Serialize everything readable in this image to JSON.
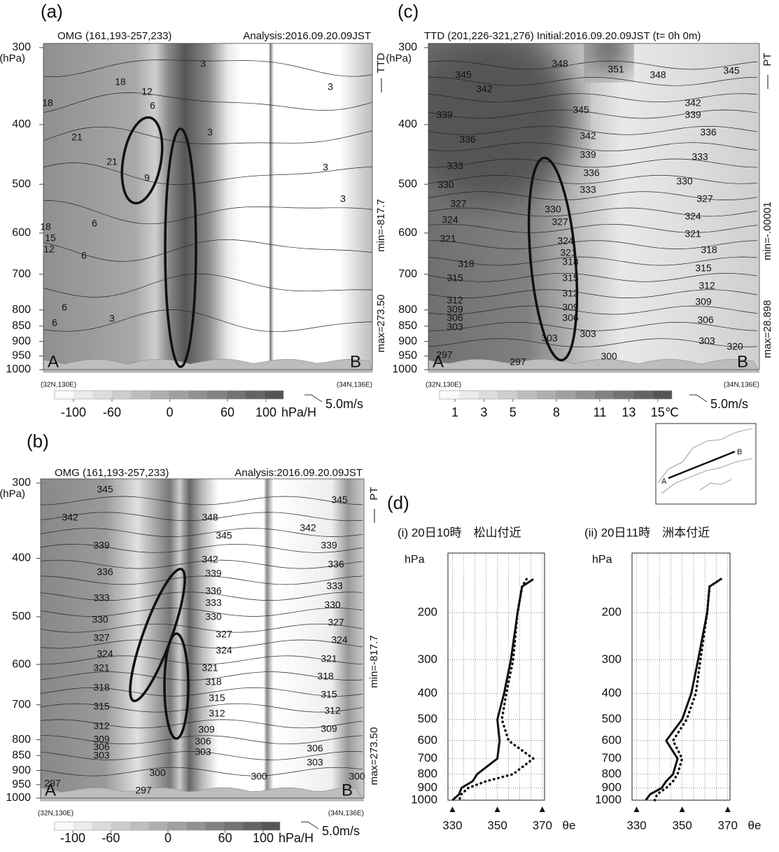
{
  "panels": {
    "a": {
      "label": "(a)",
      "title_left": "OMG (161,193-257,233)",
      "title_right": "Analysis:2016.09.20.09JST",
      "y_unit": "(hPa)",
      "yticks": [
        300,
        400,
        500,
        600,
        700,
        800,
        850,
        900,
        950,
        1000
      ],
      "yscale": "log",
      "side_labels": [
        "TTD",
        "min=-817.7",
        "max=273.50"
      ],
      "corner_left": "(32N,130E)",
      "corner_right": "(34N,136E)",
      "point_a": "A",
      "point_b": "B",
      "colorbar_ticks": [
        -100,
        -60,
        0,
        60,
        100
      ],
      "colorbar_unit": "hPa/H",
      "wind_scale": "5.0m/s",
      "contour_labels": [
        3,
        18,
        12,
        6,
        18,
        21,
        21,
        9,
        6,
        18,
        15,
        12,
        6,
        6,
        6,
        3,
        3,
        3,
        3,
        3
      ]
    },
    "b": {
      "label": "(b)",
      "title_left": "OMG (161,193-257,233)",
      "title_right": "Analysis:2016.09.20.09JST",
      "y_unit": "(hPa)",
      "yticks": [
        300,
        400,
        500,
        600,
        700,
        800,
        850,
        900,
        950,
        1000
      ],
      "yscale": "log",
      "side_labels": [
        "PT",
        "min=-817.7",
        "max=273.50"
      ],
      "corner_left": "(32N,130E)",
      "corner_right": "(34N,136E)",
      "point_a": "A",
      "point_b": "B",
      "colorbar_ticks": [
        -100,
        -60,
        0,
        60,
        100
      ],
      "colorbar_unit": "hPa/H",
      "wind_scale": "5.0m/s",
      "contour_labels": [
        345,
        345,
        348,
        342,
        345,
        342,
        339,
        342,
        339,
        339,
        336,
        336,
        333,
        336,
        333,
        333,
        330,
        330,
        330,
        327,
        327,
        327,
        324,
        324,
        324,
        321,
        321,
        321,
        318,
        318,
        318,
        315,
        315,
        315,
        312,
        312,
        312,
        309,
        309,
        306,
        303,
        309,
        306,
        303,
        306,
        303,
        300,
        300,
        297,
        297,
        300
      ]
    },
    "c": {
      "label": "(c)",
      "title_left": "TTD (201,226-321,276) Initial:2016.09.20.09JST (t=  0h 0m)",
      "y_unit": "(hPa)",
      "yticks": [
        300,
        400,
        500,
        600,
        700,
        800,
        850,
        900,
        950,
        1000
      ],
      "yscale": "log",
      "side_labels": [
        "PT",
        "min=-.00001",
        "max=28.898"
      ],
      "corner_left": "(32N,130E)",
      "corner_right": "(34N,136E)",
      "point_a": "A",
      "point_b": "B",
      "colorbar_ticks": [
        1,
        3,
        5,
        8,
        11,
        13,
        15
      ],
      "colorbar_unit": "℃",
      "wind_scale": "5.0m/s",
      "contour_labels": [
        345,
        348,
        351,
        348,
        345,
        342,
        342,
        345,
        339,
        339,
        342,
        336,
        336,
        339,
        333,
        333,
        336,
        330,
        330,
        333,
        327,
        327,
        324,
        324,
        321,
        321,
        318,
        318,
        315,
        315,
        312,
        312,
        309,
        309,
        306,
        306,
        303,
        303,
        300,
        297,
        297,
        320,
        318,
        315,
        312,
        309,
        306,
        303,
        303,
        330,
        327,
        324,
        321
      ]
    }
  },
  "inset_map": {
    "point_a": "A",
    "point_b": "B"
  },
  "panel_d_label": "(d)",
  "chart_data": [
    {
      "type": "line",
      "title": "(i) 20日10時　松山付近",
      "y_label": "hPa",
      "x_label": "θe",
      "xlim": [
        328,
        371
      ],
      "xticks": [
        330,
        350,
        370
      ],
      "xgrid": [
        330,
        335,
        340,
        345,
        350,
        355,
        360,
        365,
        370
      ],
      "ylim": [
        1000,
        120
      ],
      "yticks": [
        200,
        300,
        400,
        500,
        600,
        700,
        800,
        900,
        1000
      ],
      "y_log": true,
      "grid": true,
      "levels": [
        150,
        160,
        200,
        300,
        400,
        500,
        600,
        700,
        800,
        850,
        900,
        950,
        1000
      ],
      "series": [
        {
          "color": "#111111",
          "style": "solid",
          "values": [
            366,
            361,
            359,
            356,
            353,
            350,
            351,
            350,
            341,
            339,
            334,
            333,
            330
          ]
        },
        {
          "color": "#111111",
          "style": "dotted",
          "values": [
            363,
            361,
            359,
            357,
            354,
            352,
            355,
            366,
            357,
            345,
            337,
            334,
            333
          ]
        }
      ]
    },
    {
      "type": "line",
      "title": "(ii) 20日11時　洲本付近",
      "y_label": "hPa",
      "x_label": "θe",
      "xlim": [
        328,
        371
      ],
      "xticks": [
        330,
        350,
        370
      ],
      "xgrid": [
        330,
        335,
        340,
        345,
        350,
        355,
        360,
        365,
        370
      ],
      "ylim": [
        1000,
        120
      ],
      "yticks": [
        200,
        300,
        400,
        500,
        600,
        700,
        800,
        900,
        1000
      ],
      "y_log": true,
      "grid": true,
      "levels": [
        150,
        160,
        200,
        300,
        400,
        500,
        600,
        700,
        800,
        850,
        900,
        950,
        1000
      ],
      "series": [
        {
          "color": "#111111",
          "style": "solid",
          "values": [
            367,
            362,
            361,
            357,
            354,
            350,
            343,
            348,
            346,
            343,
            341,
            336,
            334
          ]
        },
        {
          "color": "#111111",
          "style": "dotted",
          "values": [
            367,
            362,
            361,
            358,
            356,
            352,
            346,
            350,
            348,
            346,
            343,
            339,
            338
          ]
        }
      ]
    }
  ]
}
